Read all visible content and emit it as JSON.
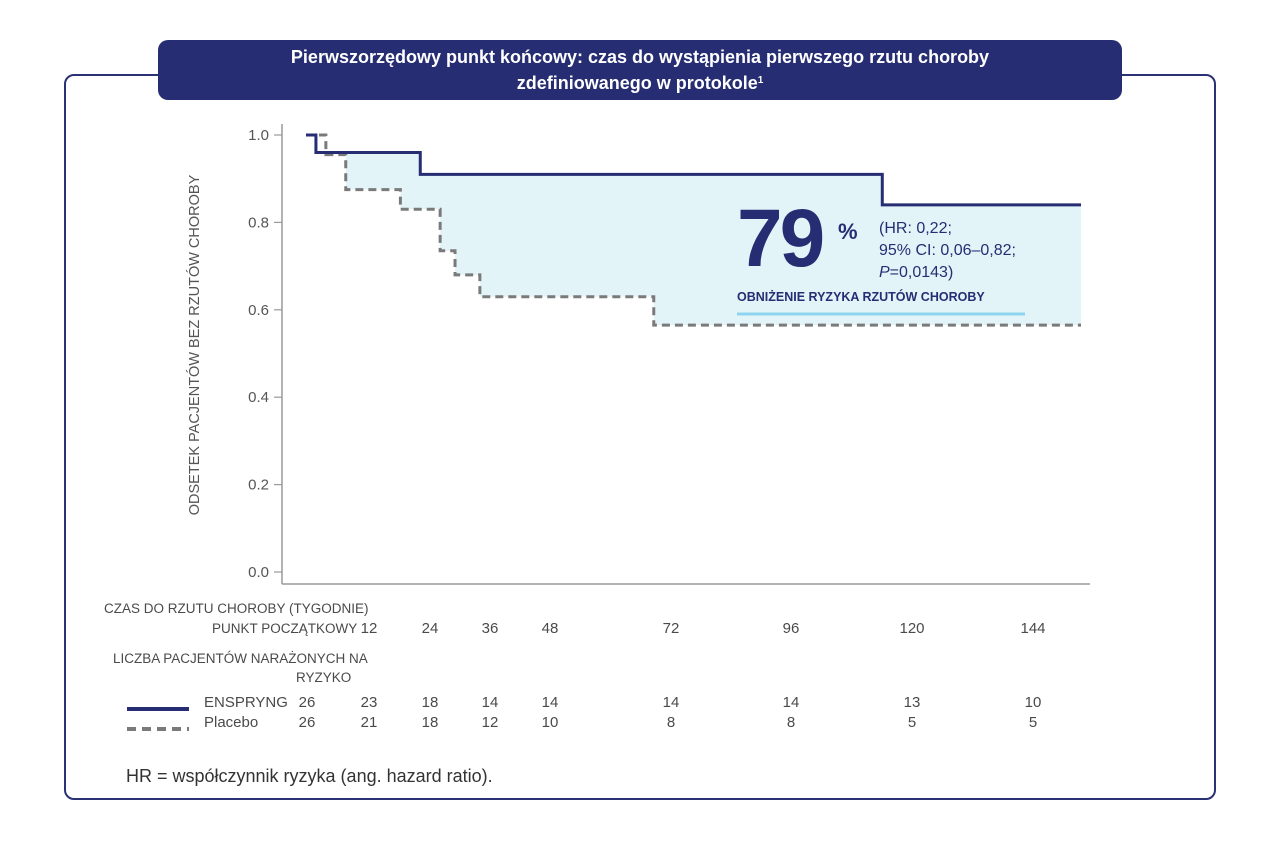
{
  "title": {
    "line1": "Pierwszorzędowy punkt końcowy: czas do wystąpienia pierwszego rzutu choroby",
    "line2": "zdefiniowanego w protokole",
    "sup": "1"
  },
  "callout": {
    "big": "79",
    "pct": "%",
    "line1": "(HR: 0,22;",
    "line2": "95% CI: 0,06–0,82;",
    "line3_italic": "P",
    "line3_rest": "=0,0143)",
    "label": "OBNIŻENIE RYZYKA RZUTÓW CHOROBY"
  },
  "table": {
    "time_label": "CZAS DO RZUTU CHOROBY (TYGODNIE)",
    "baseline_label": "PUNKT POCZĄTKOWY",
    "time_ticks": [
      "12",
      "24",
      "36",
      "48",
      "72",
      "96",
      "120",
      "144"
    ],
    "risk_label_1": "LICZBA PACJENTÓW NARAŻONYCH NA",
    "risk_label_2": "RYZYKO",
    "enspryng_label": "ENSPRYNG",
    "placebo_label": "Placebo",
    "enspryng_counts": [
      "26",
      "23",
      "18",
      "14",
      "14",
      "14",
      "14",
      "13",
      "10"
    ],
    "placebo_counts": [
      "26",
      "21",
      "18",
      "12",
      "10",
      "8",
      "8",
      "5",
      "5"
    ]
  },
  "footnote": "HR = współczynnik ryzyka (ang. hazard ratio).",
  "colors": {
    "navy": "#262d72",
    "placebo_gray": "#7a7a7a",
    "shade": "#e3f4f9",
    "underline": "#8fd3ee"
  },
  "chart_data": {
    "type": "line",
    "ylabel": "ODSETEK PACJENTÓW BEZ RZUTÓW CHOROBY",
    "ylim": [
      0,
      1.0
    ],
    "yticks": [
      "0.0",
      "0.2",
      "0.4",
      "0.6",
      "0.8",
      "1.0"
    ],
    "xlim": [
      0,
      156
    ],
    "series": [
      {
        "name": "ENSPRYNG",
        "style": "solid",
        "x": [
          0,
          2,
          2,
          23,
          23,
          116,
          116,
          156
        ],
        "y": [
          1.0,
          1.0,
          0.96,
          0.96,
          0.91,
          0.91,
          0.84,
          0.84
        ]
      },
      {
        "name": "Placebo",
        "style": "dashed",
        "x": [
          0,
          4,
          4,
          8,
          8,
          19,
          19,
          27,
          27,
          30,
          30,
          35,
          35,
          70,
          70,
          156
        ],
        "y": [
          1.0,
          1.0,
          0.955,
          0.955,
          0.875,
          0.875,
          0.83,
          0.83,
          0.735,
          0.735,
          0.68,
          0.68,
          0.63,
          0.63,
          0.565,
          0.565
        ]
      }
    ]
  }
}
